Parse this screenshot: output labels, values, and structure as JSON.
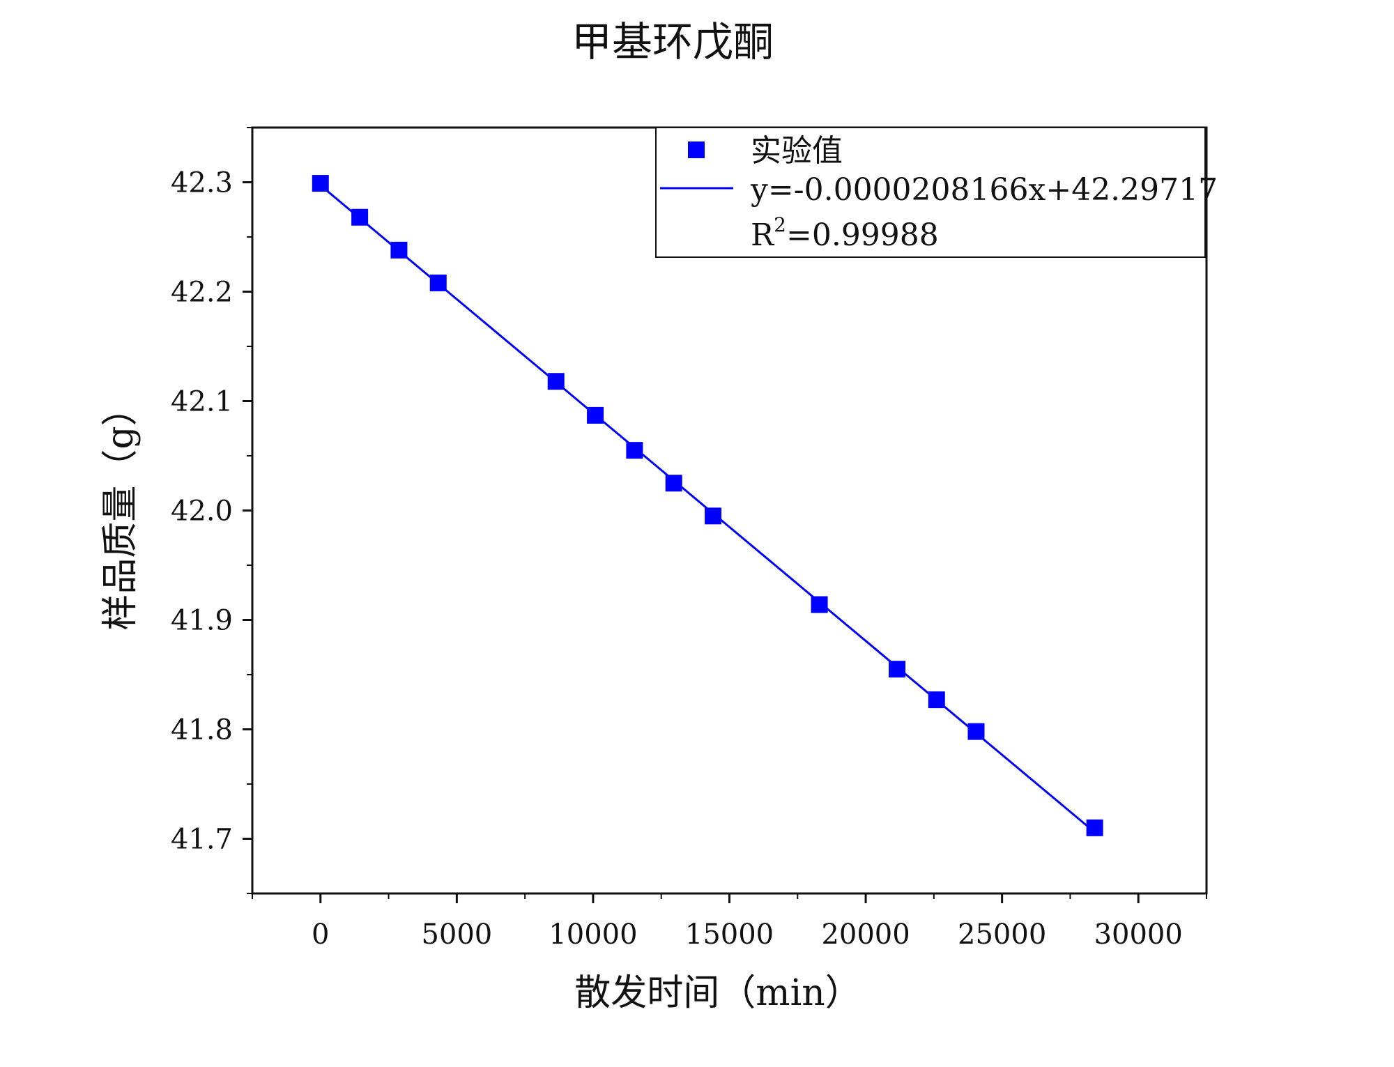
{
  "chart_data": {
    "type": "scatter",
    "title": "甲基环戊酮",
    "xlabel": "散发时间（min）",
    "ylabel": "样品质量（g）",
    "xlim": [
      -2500,
      32500
    ],
    "ylim": [
      41.65,
      42.35
    ],
    "x_ticks": [
      0,
      5000,
      10000,
      15000,
      20000,
      25000,
      30000
    ],
    "x_tick_labels": [
      "0",
      "5000",
      "10000",
      "15000",
      "20000",
      "25000",
      "30000"
    ],
    "y_ticks": [
      41.7,
      41.8,
      41.9,
      42.0,
      42.1,
      42.2,
      42.3
    ],
    "y_tick_labels": [
      "41.7",
      "41.8",
      "41.9",
      "42.0",
      "42.1",
      "42.2",
      "42.3"
    ],
    "grid": false,
    "legend_position": "top-right",
    "series": [
      {
        "name": "实验值",
        "kind": "scatter",
        "marker": "square",
        "color": "#0000ff",
        "x": [
          0,
          1440,
          2880,
          4320,
          8640,
          10080,
          11520,
          12960,
          14400,
          18300,
          21150,
          22600,
          24050,
          28400
        ],
        "y": [
          42.299,
          42.268,
          42.238,
          42.208,
          42.118,
          42.087,
          42.055,
          42.025,
          41.995,
          41.914,
          41.855,
          41.827,
          41.798,
          41.71
        ]
      },
      {
        "name": "y=-0.0000208166x+42.29717",
        "kind": "line",
        "color": "#0000ff",
        "slope": -2.08166e-05,
        "intercept": 42.29717,
        "x_range": [
          0,
          28400
        ]
      }
    ],
    "legend": {
      "scatter_label": "实验值",
      "fit_label": "y=-0.0000208166x+42.29717",
      "r2_prefix": "R",
      "r2_sup": "2",
      "r2_value": "=0.99988"
    }
  }
}
